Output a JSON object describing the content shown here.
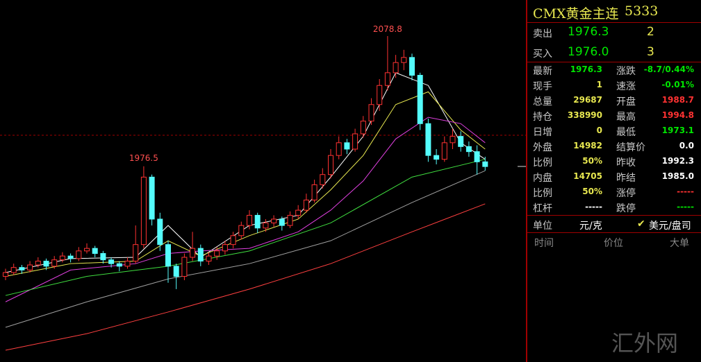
{
  "chart_data": {
    "type": "candlestick",
    "open": [
      1890,
      1893,
      1897,
      1895,
      1899,
      1902,
      1898,
      1903,
      1906,
      1904,
      1910,
      1912,
      1908,
      1903,
      1900,
      1898,
      1902,
      1915,
      1968,
      1935,
      1915,
      1898,
      1890,
      1905,
      1912,
      1902,
      1906,
      1910,
      1915,
      1922,
      1930,
      1938,
      1928,
      1932,
      1935,
      1930,
      1938,
      1942,
      1950,
      1962,
      1970,
      1985,
      1995,
      1990,
      2002,
      2012,
      2025,
      2040,
      2050,
      2058,
      2062,
      2048,
      2010,
      1985,
      1982,
      1995,
      2000,
      1992,
      1988,
      1980
    ],
    "high": [
      1896,
      1900,
      1899,
      1902,
      1905,
      1904,
      1906,
      1909,
      1908,
      1913,
      1916,
      1914,
      1910,
      1905,
      1902,
      1905,
      1930,
      1976.5,
      1970,
      1940,
      1918,
      1900,
      1908,
      1925,
      1915,
      1909,
      1913,
      1918,
      1925,
      1933,
      1942,
      1940,
      1935,
      1938,
      1937,
      1941,
      1946,
      1955,
      1966,
      1975,
      1990,
      2000,
      1998,
      2006,
      2016,
      2030,
      2045,
      2078.8,
      2064,
      2068,
      2065,
      2050,
      2014,
      1990,
      2000,
      2006,
      2004,
      1996,
      1993,
      1984
    ],
    "low": [
      1887,
      1891,
      1892,
      1893,
      1897,
      1895,
      1896,
      1901,
      1901,
      1902,
      1908,
      1905,
      1900,
      1897,
      1894,
      1896,
      1900,
      1912,
      1930,
      1910,
      1885,
      1880,
      1887,
      1902,
      1898,
      1899,
      1903,
      1907,
      1912,
      1919,
      1927,
      1924,
      1925,
      1929,
      1926,
      1928,
      1935,
      1940,
      1948,
      1959,
      1967,
      1982,
      1986,
      1988,
      1999,
      2009,
      2020,
      2036,
      2046,
      2052,
      2044,
      2005,
      1980,
      1978,
      1980,
      1990,
      1988,
      1984,
      1970,
      1973.1
    ],
    "close": [
      1893,
      1897,
      1895,
      1899,
      1902,
      1898,
      1903,
      1906,
      1904,
      1910,
      1912,
      1908,
      1903,
      1900,
      1898,
      1902,
      1915,
      1968,
      1935,
      1915,
      1898,
      1890,
      1905,
      1912,
      1902,
      1906,
      1910,
      1915,
      1922,
      1930,
      1938,
      1928,
      1932,
      1935,
      1930,
      1938,
      1942,
      1950,
      1962,
      1970,
      1985,
      1995,
      1990,
      2002,
      2012,
      2025,
      2040,
      2050,
      2058,
      2062,
      2048,
      2010,
      1985,
      1982,
      1995,
      2000,
      1992,
      1988,
      1980,
      1976.3
    ],
    "up_color": "#ff3232",
    "down_color": "#54fcfc",
    "lines": [
      {
        "color": "#ffffff",
        "x": [
          0,
          8,
          16,
          20,
          24,
          30,
          36,
          40,
          44,
          48,
          52,
          56,
          59
        ],
        "values": [
          1893,
          1904,
          1905,
          1930,
          1905,
          1930,
          1938,
          1968,
          2000,
          2050,
          2040,
          1995,
          1982
        ]
      },
      {
        "color": "#e8e850",
        "x": [
          0,
          8,
          16,
          20,
          24,
          30,
          36,
          40,
          44,
          48,
          52,
          56,
          59
        ],
        "values": [
          1890,
          1900,
          1902,
          1918,
          1906,
          1922,
          1935,
          1958,
          1985,
          2025,
          2035,
          2005,
          1990
        ]
      },
      {
        "color": "#e040e0",
        "x": [
          0,
          8,
          16,
          20,
          24,
          30,
          36,
          40,
          44,
          48,
          52,
          56,
          59
        ],
        "values": [
          1870,
          1895,
          1900,
          1908,
          1910,
          1912,
          1925,
          1942,
          1965,
          1998,
          2015,
          2010,
          1995
        ]
      },
      {
        "color": "#40e040",
        "x": [
          0,
          10,
          20,
          30,
          40,
          50,
          59
        ],
        "values": [
          1875,
          1890,
          1898,
          1910,
          1932,
          1968,
          1982
        ]
      },
      {
        "color": "#a0a0a0",
        "x": [
          0,
          10,
          20,
          30,
          40,
          50,
          59
        ],
        "values": [
          1850,
          1870,
          1888,
          1900,
          1918,
          1948,
          1973
        ]
      },
      {
        "color": "#ff4040",
        "x": [
          0,
          10,
          20,
          30,
          40,
          50,
          59
        ],
        "values": [
          1832,
          1845,
          1862,
          1880,
          1900,
          1925,
          1947
        ]
      }
    ]
  },
  "quote_panel": {
    "title": "CMX黄金主连",
    "code": "5333",
    "orders": [
      [
        "卖出",
        "1976.3",
        "2"
      ],
      [
        "买入",
        "1976.0",
        "3"
      ]
    ],
    "stats": [
      [
        "最新",
        "1976.3",
        "涨跌",
        "-8.7/0.44%"
      ],
      [
        "现手",
        "1",
        "速涨",
        "-0.01%"
      ],
      [
        "总量",
        "29687",
        "开盘",
        "1988.7"
      ],
      [
        "持仓",
        "338990",
        "最高",
        "1994.8"
      ],
      [
        "日增",
        "0",
        "最低",
        "1973.1"
      ],
      [
        "外盘",
        "14982",
        "结算价",
        "0.0"
      ],
      [
        "比例",
        "50%",
        "昨收",
        "1992.3"
      ],
      [
        "内盘",
        "14705",
        "昨结",
        "1985.0"
      ],
      [
        "比例",
        "50%",
        "涨停",
        "-----"
      ],
      [
        "杠杆",
        "-----",
        "跌停",
        "-----"
      ]
    ],
    "unit": {
      "label": "单位",
      "value": "元/克",
      "option": "美元/盘司"
    },
    "ticks_header": [
      "时间",
      "价位",
      "大单"
    ],
    "watermark": "汇外网"
  }
}
